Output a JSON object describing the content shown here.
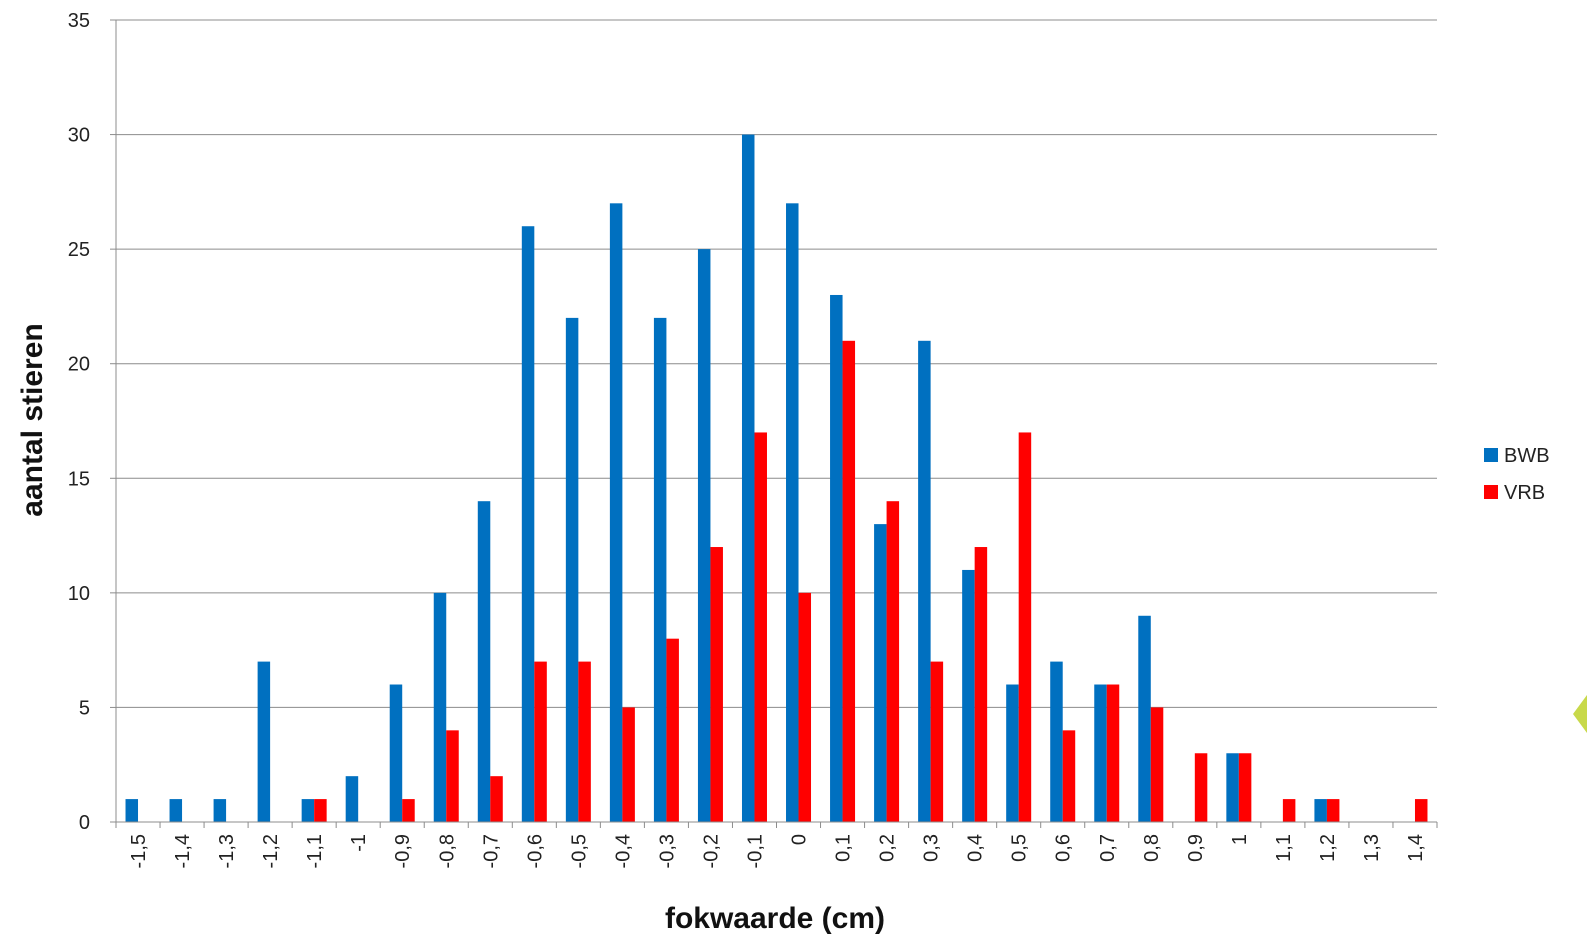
{
  "chart_data": {
    "type": "bar",
    "title": "",
    "xlabel": "fokwaarde (cm)",
    "ylabel": "aantal stieren",
    "ylim": [
      0,
      35
    ],
    "yticks": [
      0,
      5,
      10,
      15,
      20,
      25,
      30,
      35
    ],
    "grid": "horizontal",
    "legend_position": "right",
    "categories": [
      "-1,5",
      "-1,4",
      "-1,3",
      "-1,2",
      "-1,1",
      "-1",
      "-0,9",
      "-0,8",
      "-0,7",
      "-0,6",
      "-0,5",
      "-0,4",
      "-0,3",
      "-0,2",
      "-0,1",
      "0",
      "0,1",
      "0,2",
      "0,3",
      "0,4",
      "0,5",
      "0,6",
      "0,7",
      "0,8",
      "0,9",
      "1",
      "1,1",
      "1,2",
      "1,3",
      "1,4"
    ],
    "series": [
      {
        "name": "BWB",
        "color": "#0070C0",
        "values": [
          1,
          1,
          1,
          7,
          1,
          2,
          6,
          10,
          14,
          26,
          22,
          27,
          22,
          25,
          30,
          27,
          23,
          13,
          21,
          11,
          6,
          7,
          6,
          9,
          0,
          3,
          0,
          1,
          0,
          0
        ]
      },
      {
        "name": "VRB",
        "color": "#FF0000",
        "values": [
          0,
          0,
          0,
          0,
          1,
          0,
          1,
          4,
          2,
          7,
          7,
          5,
          8,
          12,
          17,
          10,
          21,
          14,
          7,
          12,
          17,
          4,
          6,
          5,
          3,
          3,
          1,
          1,
          0,
          1
        ]
      }
    ]
  }
}
